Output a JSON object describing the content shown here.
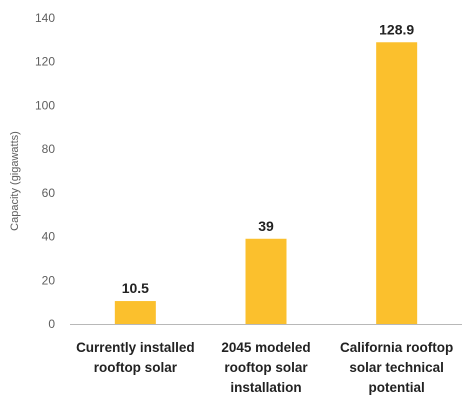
{
  "chart_data": {
    "type": "bar",
    "categories": [
      [
        "Currently installed",
        "rooftop solar"
      ],
      [
        "2045 modeled",
        "rooftop solar",
        "installation"
      ],
      [
        "California rooftop",
        "solar technical",
        "potential"
      ]
    ],
    "values": [
      10.5,
      39,
      128.9
    ],
    "value_labels": [
      "10.5",
      "39",
      "128.9"
    ],
    "title": "",
    "xlabel": "",
    "ylabel": "Capacity (gigawatts)",
    "ylim": [
      0,
      140
    ],
    "yticks": [
      0,
      20,
      40,
      60,
      80,
      100,
      120,
      140
    ],
    "grid": false,
    "legend": "none",
    "colors": {
      "bar": "#FBC02D",
      "axis": "#b8b8b8",
      "text": "#222222",
      "tick_text": "#5f5f5f"
    }
  }
}
